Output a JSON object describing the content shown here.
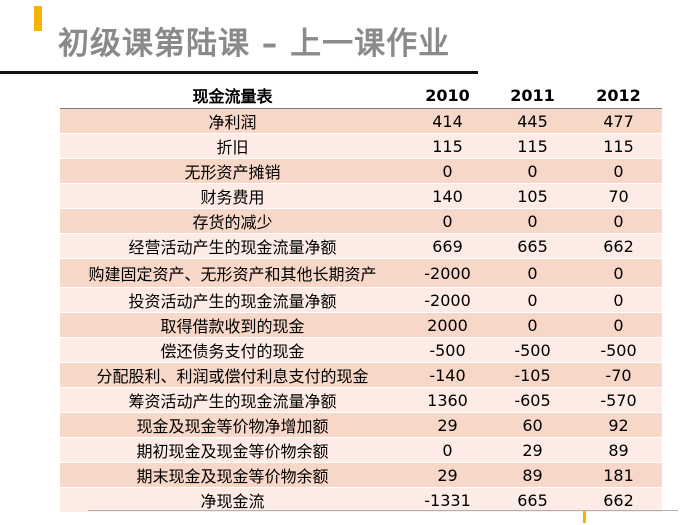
{
  "slide": {
    "title": "初级课第陆课 – 上一课作业"
  },
  "table": {
    "headers": [
      "现金流量表",
      "2010",
      "2011",
      "2012"
    ],
    "rows": [
      {
        "label": "净利润",
        "values": [
          "414",
          "445",
          "477"
        ]
      },
      {
        "label": "折旧",
        "values": [
          "115",
          "115",
          "115"
        ]
      },
      {
        "label": "无形资产摊销",
        "values": [
          "0",
          "0",
          "0"
        ]
      },
      {
        "label": "财务费用",
        "values": [
          "140",
          "105",
          "70"
        ]
      },
      {
        "label": "存货的减少",
        "values": [
          "0",
          "0",
          "0"
        ]
      },
      {
        "label": "经营活动产生的现金流量净额",
        "values": [
          "669",
          "665",
          "662"
        ]
      },
      {
        "label": "购建固定资产、无形资产和其他长期资产",
        "values": [
          "-2000",
          "0",
          "0"
        ]
      },
      {
        "label": "投资活动产生的现金流量净额",
        "values": [
          "-2000",
          "0",
          "0"
        ]
      },
      {
        "label": "取得借款收到的现金",
        "values": [
          "2000",
          "0",
          "0"
        ]
      },
      {
        "label": "偿还债务支付的现金",
        "values": [
          "-500",
          "-500",
          "-500"
        ]
      },
      {
        "label": "分配股利、利润或偿付利息支付的现金",
        "values": [
          "-140",
          "-105",
          "-70"
        ]
      },
      {
        "label": "筹资活动产生的现金流量净额",
        "values": [
          "1360",
          "-605",
          "-570"
        ]
      },
      {
        "label": "现金及现金等价物净增加额",
        "values": [
          "29",
          "60",
          "92"
        ]
      },
      {
        "label": "期初现金及现金等价物余额",
        "values": [
          "0",
          "29",
          "89"
        ]
      },
      {
        "label": "期末现金及现金等价物余额",
        "values": [
          "29",
          "89",
          "181"
        ]
      },
      {
        "label": "净现金流",
        "values": [
          "-1331",
          "665",
          "662"
        ]
      }
    ]
  },
  "colors": {
    "accent": "#f4b400",
    "title": "#8a8a8a",
    "row_dark": "#f7d7c7",
    "row_light": "#fcece5"
  }
}
